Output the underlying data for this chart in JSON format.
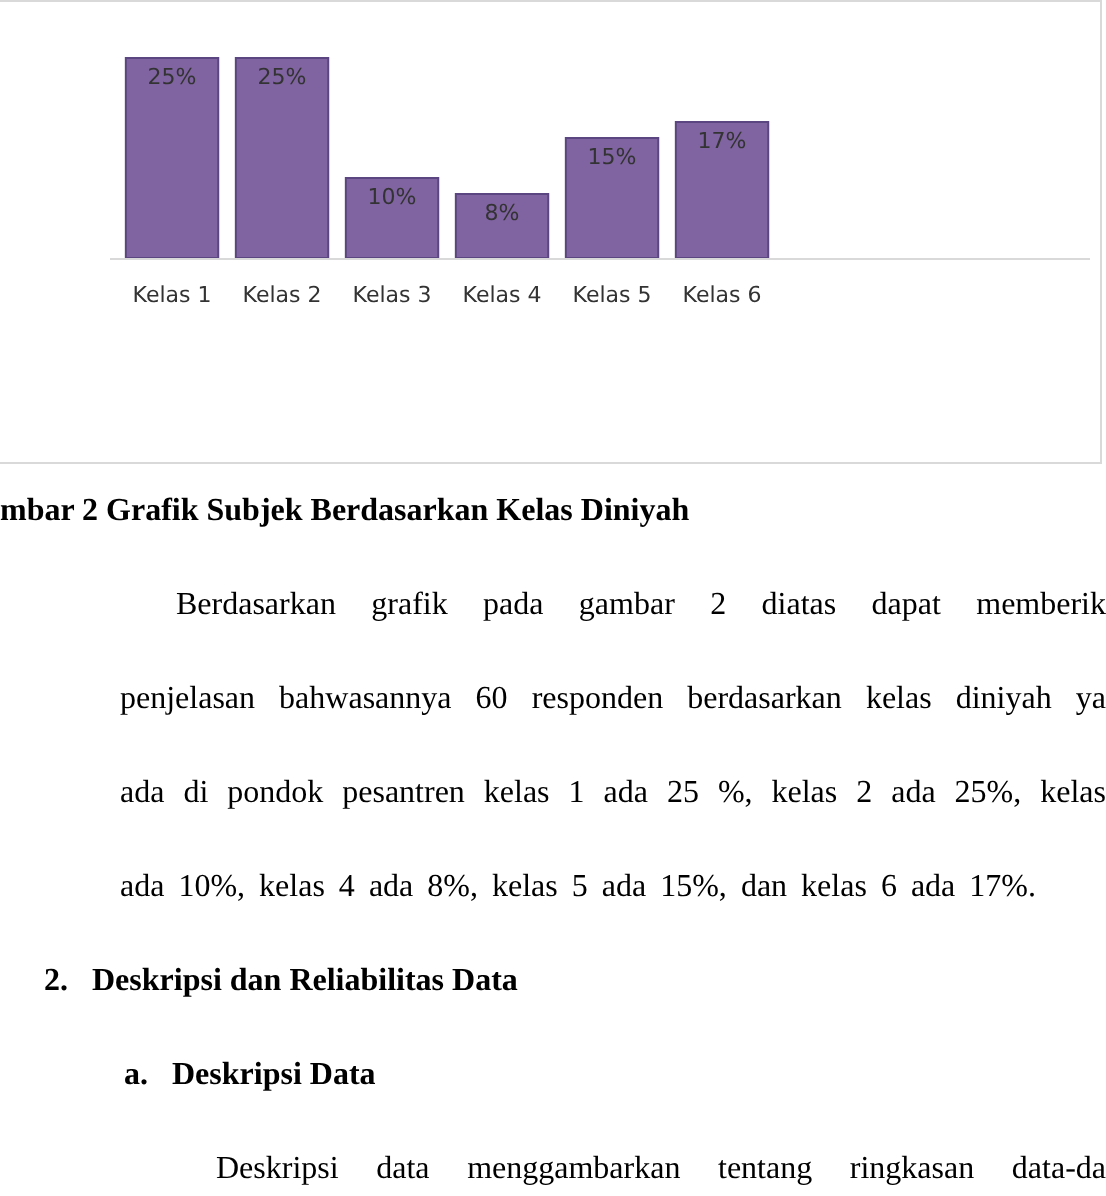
{
  "chart_data": {
    "type": "bar",
    "title": "mbar 2 Grafik Subjek Berdasarkan Kelas Diniyah",
    "categories": [
      "Kelas 1",
      "Kelas 2",
      "Kelas 3",
      "Kelas 4",
      "Kelas 5",
      "Kelas 6"
    ],
    "values": [
      25,
      25,
      10,
      8,
      15,
      17
    ],
    "value_labels": [
      "25%",
      "25%",
      "10%",
      "8%",
      "15%",
      "17%"
    ],
    "color": "#8064a2",
    "grid": false,
    "legend": false,
    "annotations": [
      "Berdasarkan grafik pada gambar 2 diatas dapat memberik",
      "penjelasan bahwasannya 60 responden berdasarkan kelas diniyah ya",
      "ada di pondok pesantren kelas 1 ada 25 %, kelas 2 ada 25%, kelas",
      "ada 10%, kelas  4 ada 8%, kelas 5 ada 15%, dan kelas 6 ada 17%.",
      "2.   Deskripsi dan Reliabilitas Data",
      "a.   Deskripsi Data",
      "Deskripsi data menggambarkan tentang ringkasan data-da"
    ]
  }
}
